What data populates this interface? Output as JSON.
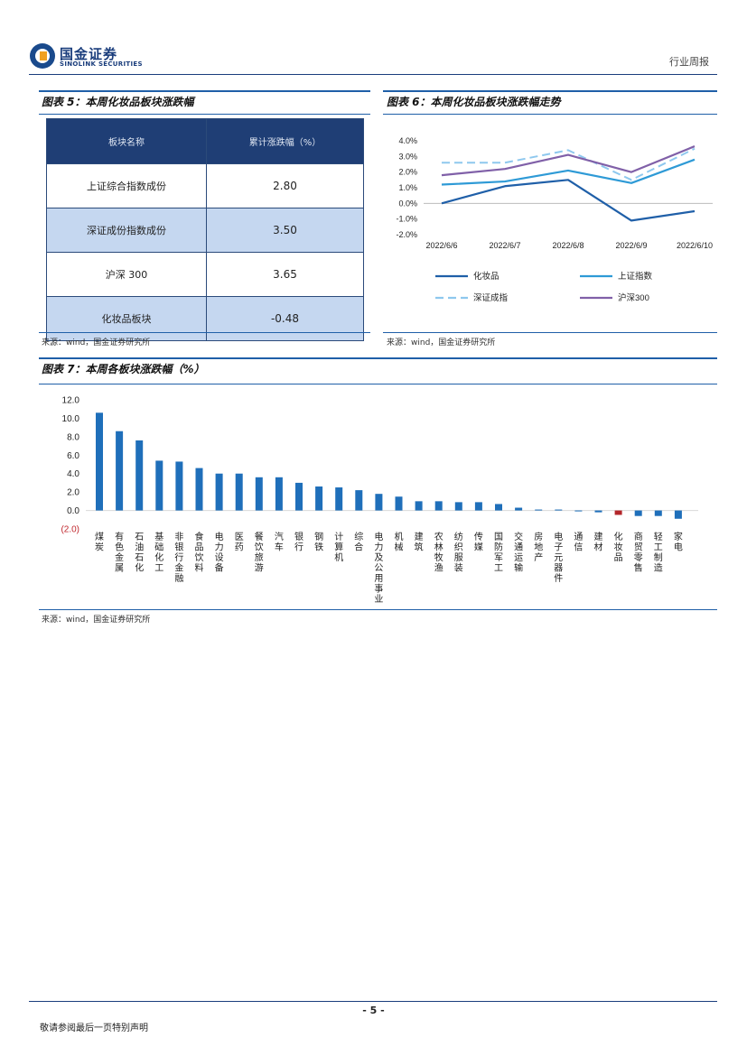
{
  "header": {
    "company_cn": "国金证券",
    "company_en": "SINOLINK SECURITIES",
    "report_type": "行业周报"
  },
  "fig5": {
    "title": "图表 5：本周化妆品板块涨跌幅",
    "columns": [
      "板块名称",
      "累计涨跌幅（%）"
    ],
    "rows": [
      {
        "name": "上证综合指数成份",
        "value": "2.80"
      },
      {
        "name": "深证成份指数成份",
        "value": "3.50"
      },
      {
        "name": "沪深 300",
        "value": "3.65"
      },
      {
        "name": "化妆品板块",
        "value": "-0.48"
      }
    ],
    "source": "来源：wind，国金证券研究所"
  },
  "fig6": {
    "title": "图表 6：本周化妆品板块涨跌幅走势",
    "source": "来源：wind，国金证券研究所"
  },
  "fig7": {
    "title": "图表 7：本周各板块涨跌幅（%）",
    "source": "来源：wind，国金证券研究所"
  },
  "chart_data": [
    {
      "type": "line",
      "x": [
        "2022/6/6",
        "2022/6/7",
        "2022/6/8",
        "2022/6/9",
        "2022/6/10"
      ],
      "y_ticks": [
        "4.0%",
        "3.0%",
        "2.0%",
        "1.0%",
        "0.0%",
        "-1.0%",
        "-2.0%"
      ],
      "ylim": [
        -2.0,
        4.0
      ],
      "legend": "bottom",
      "series": [
        {
          "name": "化妆品",
          "values": [
            0.0,
            1.1,
            1.5,
            -1.1,
            -0.5
          ],
          "color": "#1f5fa8"
        },
        {
          "name": "上证指数",
          "values": [
            1.2,
            1.4,
            2.1,
            1.3,
            2.8
          ],
          "color": "#2e9ad6"
        },
        {
          "name": "深证成指",
          "values": [
            2.6,
            2.6,
            3.4,
            1.5,
            3.5
          ],
          "color": "#8ec8ee",
          "dashed": true
        },
        {
          "name": "沪深300",
          "values": [
            1.8,
            2.2,
            3.1,
            2.0,
            3.65
          ],
          "color": "#8060a8"
        }
      ]
    },
    {
      "type": "bar",
      "y_ticks": [
        "12.0",
        "10.0",
        "8.0",
        "6.0",
        "4.0",
        "2.0",
        "0.0",
        "(2.0)"
      ],
      "ylim": [
        -2.0,
        12.0
      ],
      "categories": [
        "煤炭",
        "有色金属",
        "石油石化",
        "基础化工",
        "非银行金融",
        "食品饮料",
        "电力设备",
        "医药",
        "餐饮旅游",
        "汽车",
        "银行",
        "钢铁",
        "计算机",
        "综合",
        "电力及公用事业",
        "机械",
        "建筑",
        "农林牧渔",
        "纺织服装",
        "传媒",
        "国防军工",
        "交通运输",
        "房地产",
        "电子元器件",
        "通信",
        "建材",
        "化妆品",
        "商贸零售",
        "轻工制造",
        "家电"
      ],
      "values": [
        10.6,
        8.6,
        7.6,
        5.4,
        5.3,
        4.6,
        4.0,
        4.0,
        3.6,
        3.6,
        3.0,
        2.6,
        2.5,
        2.2,
        1.8,
        1.5,
        1.0,
        1.0,
        0.9,
        0.9,
        0.7,
        0.3,
        0.1,
        0.1,
        -0.1,
        -0.2,
        -0.48,
        -0.6,
        -0.6,
        -0.9
      ],
      "bar_color": "#1f6fba",
      "highlight": {
        "category": "化妆品",
        "color": "#b3262a"
      }
    }
  ],
  "footer": {
    "page": "- 5 -",
    "disclaimer": "敬请参阅最后一页特别声明"
  }
}
